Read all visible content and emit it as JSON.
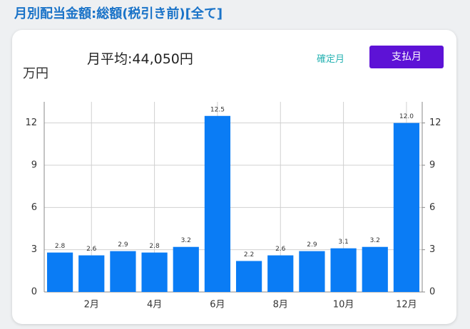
{
  "header": {
    "title": "月別配当金額:総額(税引き前)[全て]"
  },
  "summary": {
    "average": "月平均:44,050円"
  },
  "buttons": {
    "confirmed": "確定月",
    "paid": "支払月"
  },
  "chart_data": {
    "type": "bar",
    "y_label": "万円",
    "categories": [
      null,
      "2月",
      null,
      "4月",
      null,
      "6月",
      null,
      "8月",
      null,
      "10月",
      null,
      "12月"
    ],
    "values": [
      2.8,
      2.6,
      2.9,
      2.8,
      3.2,
      12.5,
      2.2,
      2.6,
      2.9,
      3.1,
      3.2,
      12.0
    ],
    "value_labels": [
      "2.8",
      "2.6",
      "2.9",
      "2.8",
      "3.2",
      "12.5",
      "2.2",
      "2.6",
      "2.9",
      "3.1",
      "3.2",
      "12.0"
    ],
    "color": "#0a7cf5",
    "ylim": [
      0,
      13.5
    ],
    "yticks": [
      0,
      3,
      6,
      9,
      12
    ],
    "y2lim": [
      0,
      13.5
    ],
    "y2ticks": [
      0,
      3,
      6,
      9,
      12
    ],
    "grid": true
  }
}
